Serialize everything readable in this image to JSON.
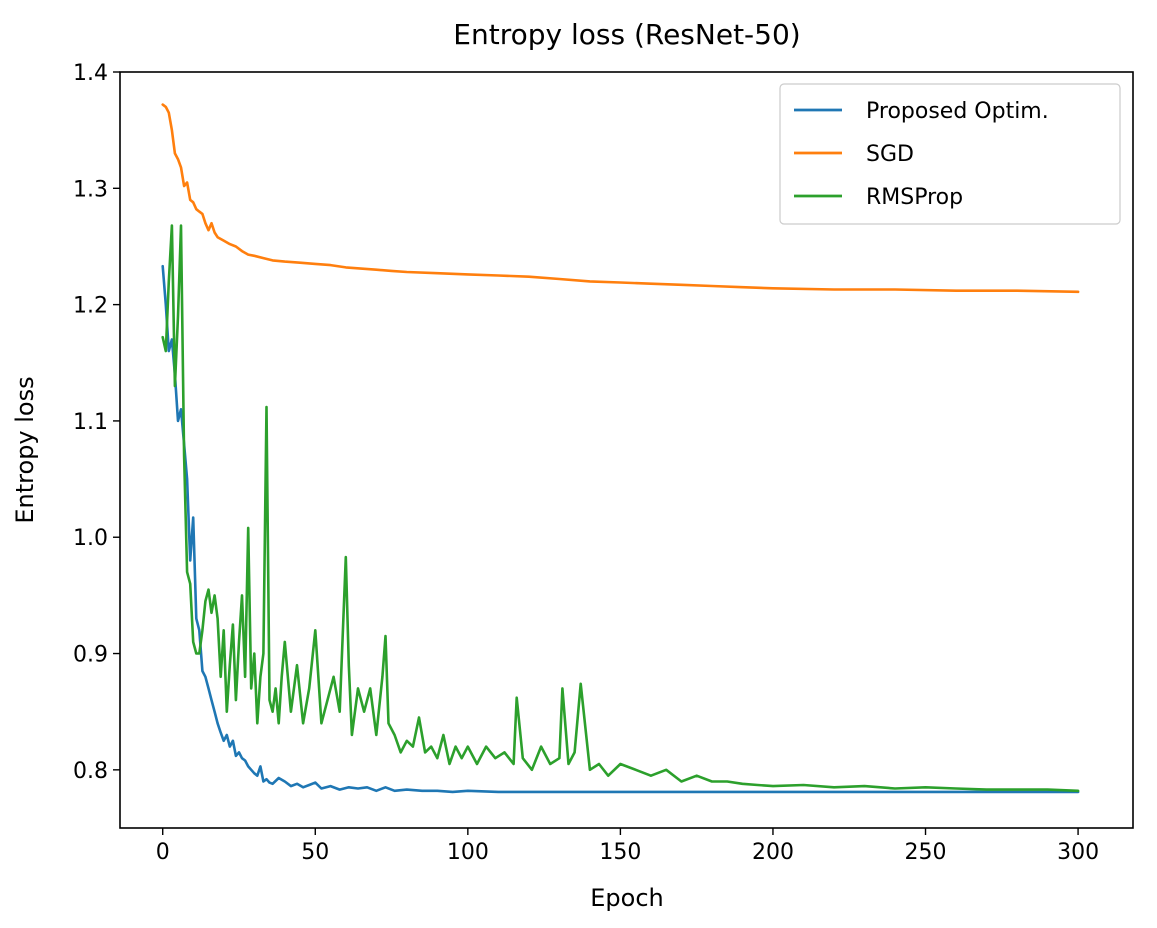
{
  "chart_data": {
    "type": "line",
    "title": "Entropy loss (ResNet-50)",
    "xlabel": "Epoch",
    "ylabel": "Entropy loss",
    "xlim": [
      -14,
      318
    ],
    "ylim": [
      0.75,
      1.4
    ],
    "xticks": [
      0,
      50,
      100,
      150,
      200,
      250,
      300
    ],
    "yticks": [
      0.8,
      0.9,
      1.0,
      1.1,
      1.2,
      1.3,
      1.4
    ],
    "xtick_labels": [
      "0",
      "50",
      "100",
      "150",
      "200",
      "250",
      "300"
    ],
    "ytick_labels": [
      "0.8",
      "0.9",
      "1.0",
      "1.1",
      "1.2",
      "1.3",
      "1.4"
    ],
    "grid": false,
    "legend_position": "top-right",
    "series": [
      {
        "name": "Proposed Optim.",
        "color": "#1f77b4",
        "x": [
          0,
          1,
          2,
          3,
          4,
          5,
          6,
          7,
          8,
          9,
          10,
          11,
          12,
          13,
          14,
          15,
          16,
          17,
          18,
          19,
          20,
          21,
          22,
          23,
          24,
          25,
          26,
          27,
          28,
          29,
          30,
          31,
          32,
          33,
          34,
          35,
          36,
          38,
          40,
          42,
          44,
          46,
          48,
          50,
          52,
          55,
          58,
          61,
          64,
          67,
          70,
          73,
          76,
          80,
          85,
          90,
          95,
          100,
          110,
          120,
          130,
          140,
          150,
          160,
          170,
          180,
          190,
          200,
          220,
          240,
          260,
          280,
          300
        ],
        "values": [
          1.233,
          1.2,
          1.16,
          1.17,
          1.14,
          1.1,
          1.11,
          1.08,
          1.05,
          0.98,
          1.017,
          0.93,
          0.92,
          0.885,
          0.88,
          0.87,
          0.86,
          0.85,
          0.84,
          0.832,
          0.825,
          0.83,
          0.82,
          0.825,
          0.812,
          0.815,
          0.81,
          0.808,
          0.803,
          0.8,
          0.797,
          0.795,
          0.803,
          0.79,
          0.792,
          0.789,
          0.788,
          0.793,
          0.79,
          0.786,
          0.788,
          0.785,
          0.787,
          0.789,
          0.784,
          0.786,
          0.783,
          0.785,
          0.784,
          0.785,
          0.782,
          0.785,
          0.782,
          0.783,
          0.782,
          0.782,
          0.781,
          0.782,
          0.781,
          0.781,
          0.781,
          0.781,
          0.781,
          0.781,
          0.781,
          0.781,
          0.781,
          0.781,
          0.781,
          0.781,
          0.781,
          0.781,
          0.781
        ]
      },
      {
        "name": "SGD",
        "color": "#ff7f0e",
        "x": [
          0,
          1,
          2,
          3,
          4,
          5,
          6,
          7,
          8,
          9,
          10,
          11,
          12,
          13,
          14,
          15,
          16,
          17,
          18,
          20,
          22,
          24,
          26,
          28,
          30,
          33,
          36,
          40,
          45,
          50,
          55,
          60,
          65,
          70,
          75,
          80,
          90,
          100,
          110,
          120,
          130,
          140,
          150,
          160,
          170,
          180,
          190,
          200,
          220,
          240,
          260,
          280,
          300
        ],
        "values": [
          1.372,
          1.37,
          1.365,
          1.35,
          1.33,
          1.325,
          1.318,
          1.302,
          1.305,
          1.29,
          1.288,
          1.282,
          1.28,
          1.278,
          1.27,
          1.264,
          1.27,
          1.262,
          1.258,
          1.255,
          1.252,
          1.25,
          1.246,
          1.243,
          1.242,
          1.24,
          1.238,
          1.237,
          1.236,
          1.235,
          1.234,
          1.232,
          1.231,
          1.23,
          1.229,
          1.228,
          1.227,
          1.226,
          1.225,
          1.224,
          1.222,
          1.22,
          1.219,
          1.218,
          1.217,
          1.216,
          1.215,
          1.214,
          1.213,
          1.213,
          1.212,
          1.212,
          1.211
        ]
      },
      {
        "name": "RMSProp",
        "color": "#2ca02c",
        "x": [
          0,
          1,
          2,
          3,
          4,
          5,
          6,
          7,
          8,
          9,
          10,
          11,
          12,
          13,
          14,
          15,
          16,
          17,
          18,
          19,
          20,
          21,
          22,
          23,
          24,
          25,
          26,
          27,
          28,
          29,
          30,
          31,
          32,
          33,
          34,
          35,
          36,
          37,
          38,
          39,
          40,
          42,
          44,
          46,
          48,
          50,
          52,
          54,
          56,
          58,
          60,
          61,
          62,
          64,
          66,
          68,
          70,
          72,
          73,
          74,
          76,
          78,
          80,
          82,
          84,
          86,
          88,
          90,
          92,
          94,
          96,
          98,
          100,
          103,
          106,
          109,
          112,
          115,
          116,
          118,
          121,
          124,
          127,
          130,
          131,
          133,
          135,
          137,
          140,
          143,
          146,
          150,
          155,
          160,
          165,
          170,
          175,
          180,
          185,
          190,
          195,
          200,
          210,
          220,
          230,
          240,
          250,
          260,
          270,
          280,
          290,
          300
        ],
        "values": [
          1.172,
          1.16,
          1.22,
          1.268,
          1.13,
          1.19,
          1.268,
          1.07,
          0.97,
          0.96,
          0.91,
          0.9,
          0.9,
          0.92,
          0.945,
          0.955,
          0.935,
          0.95,
          0.93,
          0.88,
          0.92,
          0.85,
          0.89,
          0.925,
          0.86,
          0.91,
          0.95,
          0.88,
          1.008,
          0.87,
          0.9,
          0.84,
          0.88,
          0.9,
          1.112,
          0.86,
          0.85,
          0.87,
          0.84,
          0.88,
          0.91,
          0.85,
          0.89,
          0.84,
          0.87,
          0.92,
          0.84,
          0.86,
          0.88,
          0.85,
          0.983,
          0.89,
          0.83,
          0.87,
          0.85,
          0.87,
          0.83,
          0.88,
          0.915,
          0.84,
          0.83,
          0.815,
          0.825,
          0.82,
          0.845,
          0.815,
          0.82,
          0.81,
          0.83,
          0.805,
          0.82,
          0.81,
          0.82,
          0.805,
          0.82,
          0.81,
          0.815,
          0.805,
          0.862,
          0.81,
          0.8,
          0.82,
          0.805,
          0.81,
          0.87,
          0.805,
          0.815,
          0.874,
          0.8,
          0.805,
          0.795,
          0.805,
          0.8,
          0.795,
          0.8,
          0.79,
          0.795,
          0.79,
          0.79,
          0.788,
          0.787,
          0.786,
          0.787,
          0.785,
          0.786,
          0.784,
          0.785,
          0.784,
          0.783,
          0.783,
          0.783,
          0.782
        ]
      }
    ]
  }
}
